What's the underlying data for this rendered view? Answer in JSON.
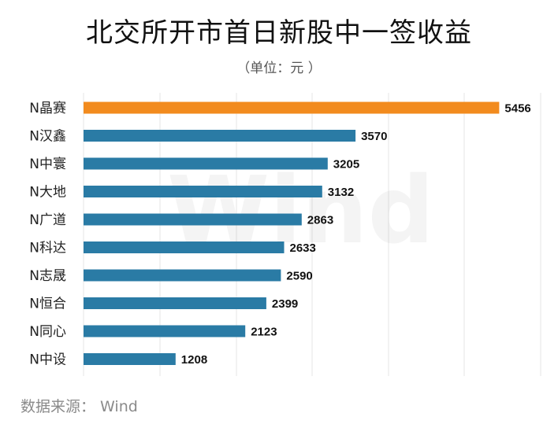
{
  "chart_data": {
    "type": "bar",
    "orientation": "horizontal",
    "title": "北交所开市首日新股中一签收益",
    "subtitle": "（单位：元 ）",
    "categories": [
      "N晶赛",
      "N汉鑫",
      "N中寰",
      "N大地",
      "N广道",
      "N科达",
      "N志晟",
      "N恒合",
      "N同心",
      "N中设"
    ],
    "values": [
      5456,
      3570,
      3205,
      3132,
      2863,
      2633,
      2590,
      2399,
      2123,
      1208
    ],
    "highlight_index": 0,
    "colors": {
      "default": "#2a7ba5",
      "highlight": "#f28b1e",
      "grid": "#e6e6e6"
    },
    "xlim": [
      0,
      6000
    ],
    "grid": "vertical",
    "data_labels": true
  },
  "source": "数据来源： Wind",
  "watermark": "Wind"
}
